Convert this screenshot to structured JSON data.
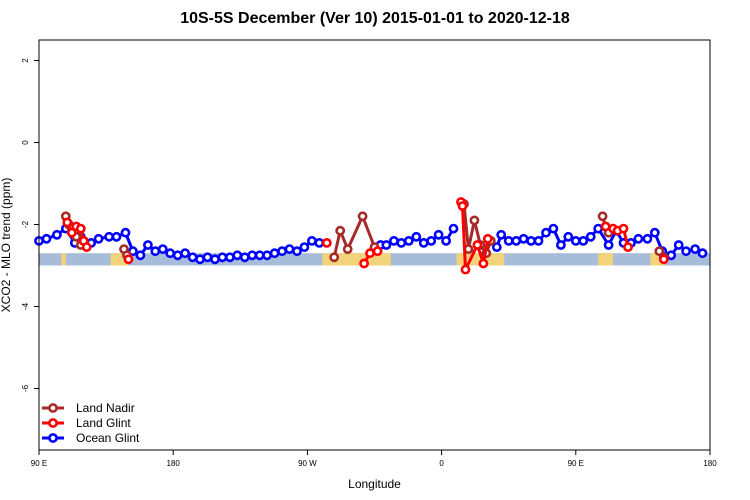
{
  "chart_data": {
    "type": "line",
    "title": "10S-5S December (Ver 10)   2015-01-01 to 2020-12-18",
    "xlabel": "Longitude",
    "ylabel": "XCO2 - MLO trend (ppm)",
    "xlim": [
      0,
      450
    ],
    "ylim": [
      -7.5,
      2.5
    ],
    "x_ticks": [
      {
        "value": 0,
        "label": "90 E"
      },
      {
        "value": 90,
        "label": "180"
      },
      {
        "value": 180,
        "label": "90 W"
      },
      {
        "value": 270,
        "label": "0"
      },
      {
        "value": 360,
        "label": "90 E"
      },
      {
        "value": 450,
        "label": "180"
      }
    ],
    "y_ticks": [
      {
        "value": 2,
        "label": "2"
      },
      {
        "value": 0,
        "label": "0"
      },
      {
        "value": -2,
        "label": "-2"
      },
      {
        "value": -4,
        "label": "-4"
      },
      {
        "value": -6,
        "label": "-6"
      }
    ],
    "grid": false,
    "legend_position": "bottom-left",
    "map_strip": {
      "y_bottom": -3.0,
      "y_top": -2.7,
      "ocean_color": "#a6bcd9",
      "land_color": "#f2d27a",
      "land_ranges": [
        [
          15,
          18
        ],
        [
          48,
          60
        ],
        [
          190,
          236
        ],
        [
          280,
          312
        ],
        [
          375,
          385
        ],
        [
          410,
          415
        ],
        [
          412,
          420
        ]
      ]
    },
    "series": [
      {
        "name": "Land Nadir",
        "color": "#a52a2a",
        "points": [
          [
            18,
            -1.8
          ],
          [
            20,
            -2.0
          ],
          [
            22,
            -2.1
          ],
          [
            25,
            -2.3
          ],
          [
            28,
            -2.5
          ],
          [
            30,
            -2.4
          ],
          [
            57,
            -2.6
          ],
          [
            59,
            -2.75
          ],
          [
            198,
            -2.8
          ],
          [
            202,
            -2.15
          ],
          [
            207,
            -2.6
          ],
          [
            217,
            -1.8
          ],
          [
            225,
            -2.55
          ],
          [
            285,
            -1.5
          ],
          [
            288,
            -2.6
          ],
          [
            292,
            -1.9
          ],
          [
            296,
            -2.5
          ],
          [
            300,
            -2.7
          ],
          [
            303,
            -2.4
          ],
          [
            378,
            -1.8
          ],
          [
            380,
            -2.05
          ],
          [
            382,
            -2.2
          ],
          [
            416,
            -2.65
          ],
          [
            419,
            -2.8
          ]
        ]
      },
      {
        "name": "Land Glint",
        "color": "#ff0000",
        "points": [
          [
            19,
            -1.95
          ],
          [
            22,
            -2.2
          ],
          [
            25,
            -2.05
          ],
          [
            28,
            -2.1
          ],
          [
            30,
            -2.4
          ],
          [
            32,
            -2.55
          ],
          [
            60,
            -2.85
          ],
          [
            193,
            -2.45
          ],
          [
            218,
            -2.95
          ],
          [
            222,
            -2.7
          ],
          [
            227,
            -2.65
          ],
          [
            283,
            -1.45
          ],
          [
            284,
            -1.55
          ],
          [
            286,
            -3.1
          ],
          [
            294,
            -2.5
          ],
          [
            298,
            -2.95
          ],
          [
            301,
            -2.35
          ],
          [
            380,
            -2.05
          ],
          [
            385,
            -2.1
          ],
          [
            388,
            -2.15
          ],
          [
            392,
            -2.1
          ],
          [
            395,
            -2.55
          ],
          [
            419,
            -2.85
          ]
        ]
      },
      {
        "name": "Ocean Glint",
        "color": "#0000ff",
        "points": [
          [
            0,
            -2.4
          ],
          [
            5,
            -2.35
          ],
          [
            12,
            -2.25
          ],
          [
            18,
            -2.1
          ],
          [
            24,
            -2.45
          ],
          [
            28,
            -2.3
          ],
          [
            35,
            -2.45
          ],
          [
            40,
            -2.35
          ],
          [
            47,
            -2.3
          ],
          [
            52,
            -2.3
          ],
          [
            58,
            -2.2
          ],
          [
            63,
            -2.65
          ],
          [
            68,
            -2.75
          ],
          [
            73,
            -2.5
          ],
          [
            78,
            -2.65
          ],
          [
            83,
            -2.6
          ],
          [
            88,
            -2.7
          ],
          [
            93,
            -2.75
          ],
          [
            98,
            -2.7
          ],
          [
            103,
            -2.8
          ],
          [
            108,
            -2.85
          ],
          [
            113,
            -2.8
          ],
          [
            118,
            -2.85
          ],
          [
            123,
            -2.8
          ],
          [
            128,
            -2.8
          ],
          [
            133,
            -2.75
          ],
          [
            138,
            -2.8
          ],
          [
            143,
            -2.75
          ],
          [
            148,
            -2.75
          ],
          [
            153,
            -2.75
          ],
          [
            158,
            -2.7
          ],
          [
            163,
            -2.65
          ],
          [
            168,
            -2.6
          ],
          [
            173,
            -2.65
          ],
          [
            178,
            -2.55
          ],
          [
            183,
            -2.4
          ],
          [
            188,
            -2.45
          ],
          [
            229,
            -2.5
          ],
          [
            233,
            -2.5
          ],
          [
            238,
            -2.4
          ],
          [
            243,
            -2.45
          ],
          [
            248,
            -2.4
          ],
          [
            253,
            -2.3
          ],
          [
            258,
            -2.45
          ],
          [
            263,
            -2.4
          ],
          [
            268,
            -2.25
          ],
          [
            273,
            -2.4
          ],
          [
            278,
            -2.1
          ],
          [
            307,
            -2.55
          ],
          [
            310,
            -2.25
          ],
          [
            315,
            -2.4
          ],
          [
            320,
            -2.4
          ],
          [
            325,
            -2.35
          ],
          [
            330,
            -2.4
          ],
          [
            335,
            -2.4
          ],
          [
            340,
            -2.2
          ],
          [
            345,
            -2.1
          ],
          [
            350,
            -2.5
          ],
          [
            355,
            -2.3
          ],
          [
            360,
            -2.4
          ],
          [
            365,
            -2.4
          ],
          [
            370,
            -2.3
          ],
          [
            375,
            -2.1
          ],
          [
            382,
            -2.5
          ],
          [
            387,
            -2.15
          ],
          [
            392,
            -2.45
          ],
          [
            397,
            -2.45
          ],
          [
            402,
            -2.35
          ],
          [
            408,
            -2.35
          ],
          [
            413,
            -2.2
          ],
          [
            418,
            -2.65
          ],
          [
            424,
            -2.75
          ],
          [
            429,
            -2.5
          ],
          [
            434,
            -2.65
          ],
          [
            440,
            -2.6
          ],
          [
            445,
            -2.7
          ]
        ]
      }
    ]
  }
}
